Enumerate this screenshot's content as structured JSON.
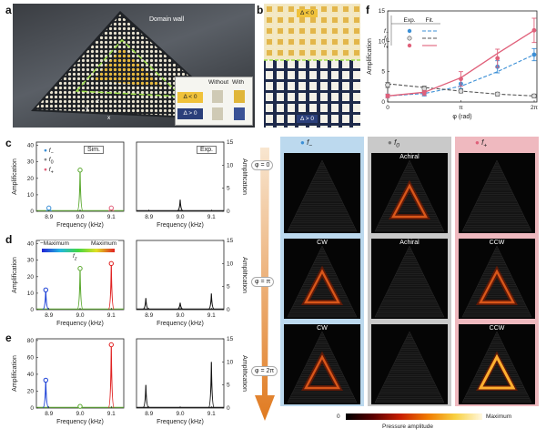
{
  "panels": {
    "a": {
      "label": "a",
      "domain_wall": "Domain wall",
      "inset": {
        "without": "Without",
        "with": "With",
        "neg": "Δ < 0",
        "pos": "Δ > 0"
      },
      "axes": {
        "y": "y",
        "x": "x",
        "z": "z"
      }
    },
    "b": {
      "label": "b",
      "neg": "Δ < 0",
      "pos": "Δ > 0"
    },
    "c": {
      "label": "c",
      "sim": "Sim.",
      "exp": "Exp."
    },
    "d": {
      "label": "d",
      "min": "−Maximum",
      "max": "Maximum",
      "var": "f",
      "var_sub": "z"
    },
    "e": {
      "label": "e"
    },
    "f": {
      "label": "f",
      "exp": "Exp.",
      "fit": "Fit."
    },
    "g": {
      "label": "g",
      "title": "f",
      "title_sub": "−",
      "rows": [
        "",
        "CW",
        "CW"
      ]
    },
    "h": {
      "label": "h",
      "title": "f",
      "title_sub": "0",
      "rows": [
        "Achiral",
        "Achiral",
        ""
      ]
    },
    "i": {
      "label": "i",
      "title": "f",
      "title_sub": "+",
      "rows": [
        "",
        "CCW",
        "CCW"
      ]
    },
    "phi": [
      "φ = 0",
      "φ = π",
      "φ = 2π"
    ],
    "colorbar": {
      "min": "0",
      "max": "Maximum",
      "label": "Pressure amplitude"
    }
  },
  "legend": [
    "f",
    "f",
    "f"
  ],
  "legend_sub": [
    "−",
    "0",
    "+"
  ],
  "colors": {
    "minus": "#3b8fd6",
    "zero": "#8a8a8a",
    "plus": "#e0607a"
  },
  "chart_data": [
    {
      "type": "line",
      "id": "c-sim",
      "xlabel": "Frequency (kHz)",
      "ylabel": "Amplification",
      "xticks": [
        "8.9",
        "9.0",
        "9.1"
      ],
      "yticks": [
        "0",
        "10",
        "20",
        "30",
        "40"
      ],
      "xlim": [
        8.86,
        9.14
      ],
      "ylim": [
        0,
        42
      ],
      "peaks": [
        {
          "x": 8.9,
          "y": 2,
          "color": "#3b8fd6"
        },
        {
          "x": 9.0,
          "y": 25,
          "color": "#5aa82e"
        },
        {
          "x": 9.1,
          "y": 2,
          "color": "#e0607a"
        }
      ]
    },
    {
      "type": "line",
      "id": "c-exp",
      "xlabel": "Frequency (kHz)",
      "ylabel": "Amplification",
      "xticks": [
        "8.9",
        "9.0",
        "9.1"
      ],
      "yticks": [
        "0",
        "5",
        "10",
        "15"
      ],
      "xlim": [
        8.86,
        9.14
      ],
      "ylim": [
        0,
        15
      ],
      "peaks": [
        {
          "x": 9.0,
          "y": 2.5,
          "color": "#111111"
        }
      ]
    },
    {
      "type": "line",
      "id": "d-sim",
      "xlabel": "Frequency (kHz)",
      "ylabel": "Amplification",
      "xticks": [
        "8.9",
        "9.0",
        "9.1"
      ],
      "yticks": [
        "0",
        "10",
        "20",
        "30",
        "40"
      ],
      "xlim": [
        8.86,
        9.14
      ],
      "ylim": [
        0,
        42
      ],
      "peaks": [
        {
          "x": 8.89,
          "y": 12,
          "color": "#1a3fd6"
        },
        {
          "x": 9.0,
          "y": 25,
          "color": "#5aa82e"
        },
        {
          "x": 9.1,
          "y": 28,
          "color": "#e02020"
        }
      ]
    },
    {
      "type": "line",
      "id": "d-exp",
      "xlabel": "Frequency (kHz)",
      "ylabel": "Amplification",
      "xticks": [
        "8.9",
        "9.0",
        "9.1"
      ],
      "yticks": [
        "0",
        "5",
        "10",
        "15"
      ],
      "xlim": [
        8.86,
        9.14
      ],
      "ylim": [
        0,
        15
      ],
      "peaks": [
        {
          "x": 8.89,
          "y": 2.5,
          "color": "#111111"
        },
        {
          "x": 9.0,
          "y": 1.5,
          "color": "#111111"
        },
        {
          "x": 9.1,
          "y": 3.5,
          "color": "#111111"
        }
      ]
    },
    {
      "type": "line",
      "id": "e-sim",
      "xlabel": "Frequency (kHz)",
      "ylabel": "Amplification",
      "xticks": [
        "8.9",
        "9.0",
        "9.1"
      ],
      "yticks": [
        "0",
        "20",
        "40",
        "60",
        "80"
      ],
      "xlim": [
        8.86,
        9.14
      ],
      "ylim": [
        0,
        82
      ],
      "peaks": [
        {
          "x": 8.89,
          "y": 33,
          "color": "#1a3fd6"
        },
        {
          "x": 9.0,
          "y": 2,
          "color": "#5aa82e"
        },
        {
          "x": 9.1,
          "y": 75,
          "color": "#e02020"
        }
      ]
    },
    {
      "type": "line",
      "id": "e-exp",
      "xlabel": "Frequency (kHz)",
      "ylabel": "Amplification",
      "xticks": [
        "8.9",
        "9.0",
        "9.1"
      ],
      "yticks": [
        "0",
        "5",
        "10",
        "15"
      ],
      "xlim": [
        8.86,
        9.14
      ],
      "ylim": [
        0,
        15
      ],
      "peaks": [
        {
          "x": 8.89,
          "y": 5,
          "color": "#111111"
        },
        {
          "x": 9.1,
          "y": 10,
          "color": "#111111"
        }
      ]
    },
    {
      "type": "scatter",
      "id": "f",
      "xlabel": "φ (rad)",
      "ylabel": "Amplification",
      "xticks": [
        "0",
        "π",
        "2π"
      ],
      "yticks": [
        "0",
        "5",
        "10",
        "15"
      ],
      "xlim": [
        0,
        6.4
      ],
      "ylim": [
        0,
        15
      ],
      "series": [
        {
          "name": "f−",
          "color": "#3b8fd6",
          "x": [
            0,
            1.57,
            3.14,
            4.71,
            6.28
          ],
          "y": [
            1,
            1.3,
            3,
            5.8,
            7.8
          ],
          "err": [
            0.3,
            0.3,
            0.8,
            1.0,
            1.0
          ],
          "fit": [
            1,
            1.4,
            2.6,
            5.0,
            7.8
          ]
        },
        {
          "name": "f0",
          "color": "#555555",
          "x": [
            0,
            1.57,
            3.14,
            4.71,
            6.28
          ],
          "y": [
            2.8,
            2.2,
            1.8,
            1.3,
            1.0
          ],
          "err": [
            0.4,
            0.4,
            0.3,
            0.3,
            0.3
          ],
          "fit": [
            3.0,
            2.4,
            1.8,
            1.3,
            1.0
          ]
        },
        {
          "name": "f+",
          "color": "#e0607a",
          "x": [
            0,
            1.57,
            3.14,
            4.71,
            6.28
          ],
          "y": [
            1,
            1.5,
            3.8,
            7.2,
            11.8
          ],
          "err": [
            0.3,
            0.4,
            1.2,
            1.5,
            2.0
          ],
          "fit": [
            1,
            1.6,
            4.0,
            8.0,
            11.8
          ]
        }
      ]
    }
  ]
}
